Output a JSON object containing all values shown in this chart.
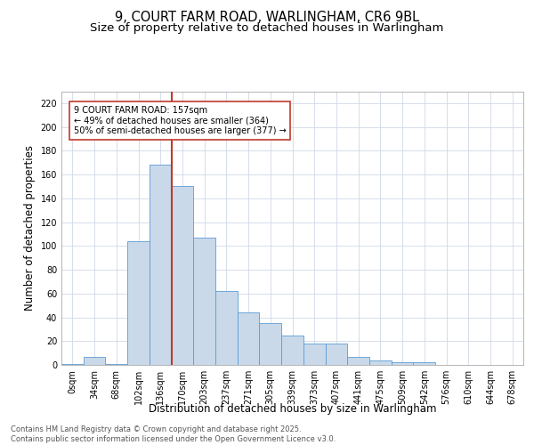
{
  "title_line1": "9, COURT FARM ROAD, WARLINGHAM, CR6 9BL",
  "title_line2": "Size of property relative to detached houses in Warlingham",
  "xlabel": "Distribution of detached houses by size in Warlingham",
  "ylabel": "Number of detached properties",
  "bin_labels": [
    "0sqm",
    "34sqm",
    "68sqm",
    "102sqm",
    "136sqm",
    "170sqm",
    "203sqm",
    "237sqm",
    "271sqm",
    "305sqm",
    "339sqm",
    "373sqm",
    "407sqm",
    "441sqm",
    "475sqm",
    "509sqm",
    "542sqm",
    "576sqm",
    "610sqm",
    "644sqm",
    "678sqm"
  ],
  "bar_values": [
    1,
    7,
    1,
    104,
    168,
    150,
    107,
    62,
    44,
    35,
    25,
    18,
    18,
    7,
    4,
    2,
    2,
    0,
    0,
    0,
    0
  ],
  "bar_color": "#c9d9ea",
  "bar_edge_color": "#5b9bd5",
  "vline_color": "#c0392b",
  "annotation_text": "9 COURT FARM ROAD: 157sqm\n← 49% of detached houses are smaller (364)\n50% of semi-detached houses are larger (377) →",
  "annotation_box_color": "#ffffff",
  "annotation_edge_color": "#c0392b",
  "annotation_text_color": "#000000",
  "ylim": [
    0,
    230
  ],
  "yticks": [
    0,
    20,
    40,
    60,
    80,
    100,
    120,
    140,
    160,
    180,
    200,
    220
  ],
  "background_color": "#ffffff",
  "grid_color": "#d0d8e8",
  "footer_text": "Contains HM Land Registry data © Crown copyright and database right 2025.\nContains public sector information licensed under the Open Government Licence v3.0.",
  "title_fontsize": 10.5,
  "subtitle_fontsize": 9.5,
  "axis_label_fontsize": 8.5,
  "tick_fontsize": 7,
  "annotation_fontsize": 7,
  "footer_fontsize": 6
}
